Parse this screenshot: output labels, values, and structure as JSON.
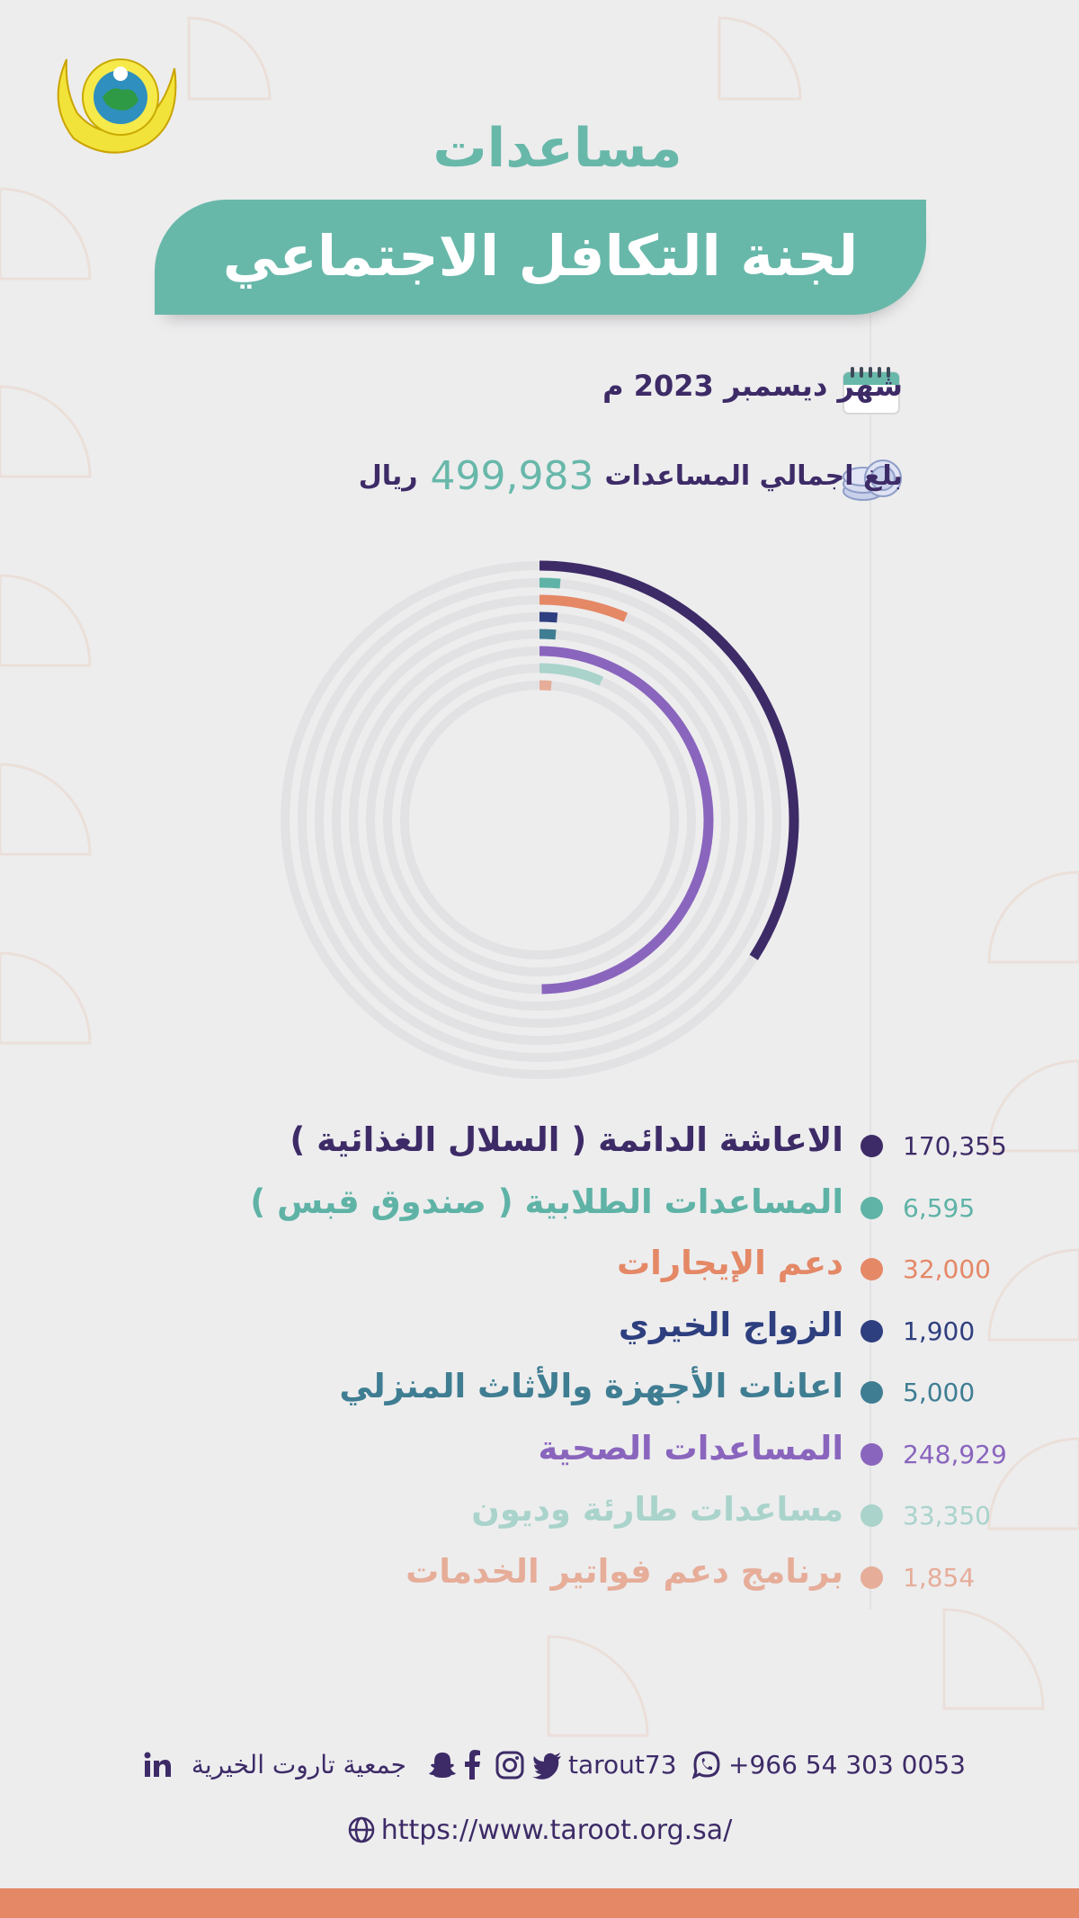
{
  "header": {
    "title_line1": "مساعدات",
    "title_line2": "لجنة التكافل الاجتماعي"
  },
  "info": {
    "date_text": "شهر ديسمبر 2023 م",
    "total_prefix": "بلغ اجمالي المساعدات",
    "total_amount": "499,983",
    "total_unit": "ريال",
    "calendar_icon": "calendar-icon",
    "coins_icon": "coins-icon"
  },
  "chart_data": {
    "type": "radial-bar",
    "total": 499983,
    "series": [
      {
        "name": "الاعاشة الدائمة ( السلال الغذائية )",
        "value": 170355,
        "value_label": "170,355",
        "color": "#3d2b67"
      },
      {
        "name": "المساعدات الطلابية ( صندوق قبس )",
        "value": 6595,
        "value_label": "6,595",
        "color": "#5fb3a6"
      },
      {
        "name": "دعم الإيجارات",
        "value": 32000,
        "value_label": "32,000",
        "color": "#e48866"
      },
      {
        "name": "الزواج الخيري",
        "value": 1900,
        "value_label": "1,900",
        "color": "#2e3f7f"
      },
      {
        "name": "اعانات الأجهزة والأثاث المنزلي",
        "value": 5000,
        "value_label": "5,000",
        "color": "#3f7d92"
      },
      {
        "name": "المساعدات الصحية",
        "value": 248929,
        "value_label": "248,929",
        "color": "#8a65bd"
      },
      {
        "name": "مساعدات طارئة وديون",
        "value": 33350,
        "value_label": "33,350",
        "color": "#a9d3cb"
      },
      {
        "name": "برنامج دعم فواتير الخدمات",
        "value": 1854,
        "value_label": "1,854",
        "color": "#e6ad99"
      }
    ]
  },
  "footer": {
    "org_name": "جمعية تاروت الخيرية",
    "handle": "tarout73",
    "phone": "+966 54 303 0053",
    "url": "https://www.taroot.org.sa/",
    "icons": [
      "linkedin-icon",
      "snapchat-icon",
      "facebook-icon",
      "instagram-icon",
      "twitter-icon",
      "whatsapp-icon",
      "globe-icon"
    ]
  },
  "colors": {
    "teal": "#68b8aa",
    "purple": "#3d2b67",
    "orange": "#e48866",
    "background": "#ededee"
  }
}
